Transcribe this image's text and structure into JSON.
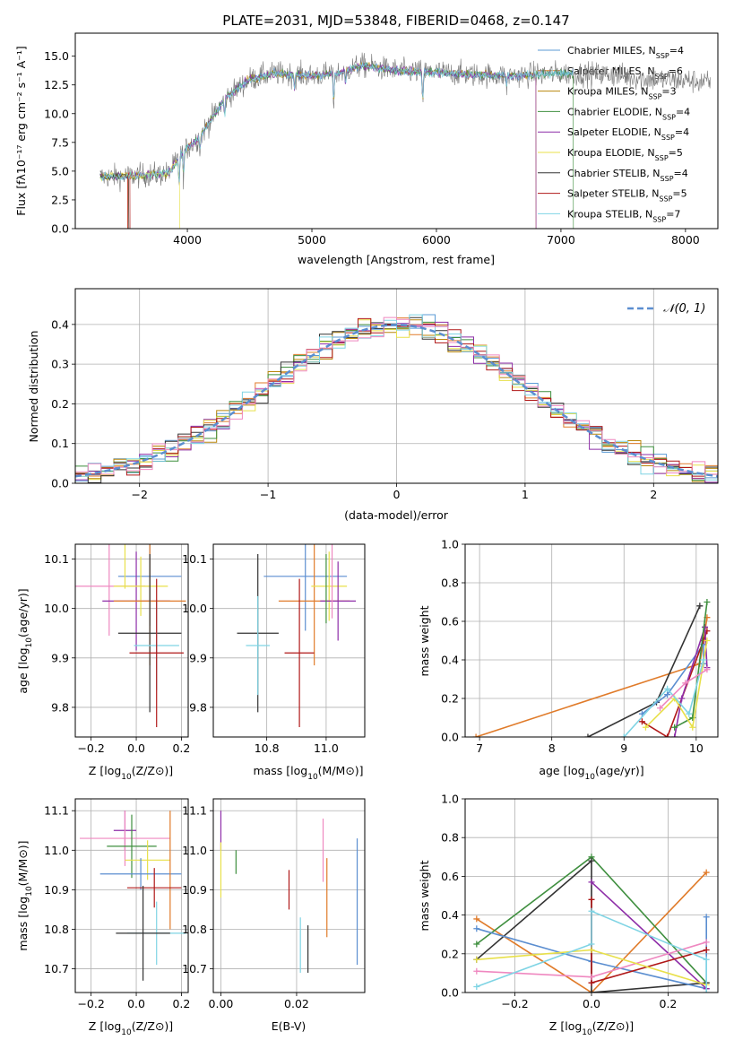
{
  "chart_data": [
    {
      "id": "spectrum",
      "type": "line",
      "title": "PLATE=2031, MJD=53848, FIBERID=0468, z=0.147",
      "xlabel": "wavelength [Angstrom, rest frame]",
      "ylabel": "Flux [fλ10⁻¹⁷ erg cm⁻² s⁻¹ A⁻¹]",
      "xlim": [
        3100,
        8260
      ],
      "ylim": [
        0,
        17
      ],
      "xticks": [
        4000,
        5000,
        6000,
        7000,
        8000
      ],
      "yticks": [
        0.0,
        2.5,
        5.0,
        7.5,
        10.0,
        12.5,
        15.0
      ],
      "continuum_anchors": [
        [
          3300,
          4.5
        ],
        [
          3600,
          4.6
        ],
        [
          3850,
          4.8
        ],
        [
          3950,
          6.5
        ],
        [
          4100,
          8.0
        ],
        [
          4300,
          11.3
        ],
        [
          4500,
          13.0
        ],
        [
          4700,
          13.5
        ],
        [
          5000,
          13.3
        ],
        [
          5200,
          13.5
        ],
        [
          5400,
          14.2
        ],
        [
          5700,
          13.7
        ],
        [
          6000,
          13.6
        ],
        [
          6300,
          13.4
        ],
        [
          6600,
          13.3
        ],
        [
          7000,
          13.5
        ],
        [
          7400,
          13.4
        ],
        [
          7700,
          13.0
        ],
        [
          8000,
          12.9
        ],
        [
          8200,
          12.7
        ]
      ],
      "observed_range": [
        3300,
        8200
      ],
      "model_range": [
        3300,
        7100
      ],
      "legend_placement": "top-right",
      "series": [
        {
          "name": "Chabrier MILES, N_SSP=4",
          "color": "#5b9bd5"
        },
        {
          "name": "Salpeter MILES, N_SSP=6",
          "color": "#e07b2a"
        },
        {
          "name": "Kroupa MILES, N_SSP=3",
          "color": "#b8860b"
        },
        {
          "name": "Chabrier ELODIE, N_SSP=4",
          "color": "#3f8f3f"
        },
        {
          "name": "Salpeter ELODIE, N_SSP=4",
          "color": "#8e2ea8"
        },
        {
          "name": "Kroupa ELODIE, N_SSP=5",
          "color": "#e8e04a"
        },
        {
          "name": "Chabrier STELIB, N_SSP=4",
          "color": "#333333"
        },
        {
          "name": "Salpeter STELIB, N_SSP=5",
          "color": "#b01818"
        },
        {
          "name": "Kroupa STELIB, N_SSP=7",
          "color": "#7fd4e4"
        }
      ]
    },
    {
      "id": "residuals",
      "type": "line",
      "xlabel": "(data-model)/error",
      "ylabel": "Normed distribution",
      "xlim": [
        -2.5,
        2.5
      ],
      "ylim": [
        0,
        0.49
      ],
      "xticks": [
        -2,
        -1,
        0,
        1,
        2
      ],
      "yticks": [
        0.0,
        0.1,
        0.2,
        0.3,
        0.4
      ],
      "grid": true,
      "legend_placement": "top-right",
      "legend": "𝒩(0, 1)",
      "curve_color": "#5b8ed0"
    },
    {
      "id": "age_vs_Z",
      "type": "scatter",
      "xlabel": "Z [log10(Z/Z⊙)]",
      "ylabel": "age  [log10(age/yr)]",
      "xlim": [
        -0.27,
        0.23
      ],
      "ylim": [
        9.74,
        10.13
      ],
      "xticks": [
        -0.2,
        0.0,
        0.2
      ],
      "yticks": [
        9.8,
        9.9,
        10.0,
        10.1
      ],
      "grid": true,
      "points": [
        {
          "x": -0.12,
          "y": 10.045,
          "xerr": 0.16,
          "yerr": 0.1,
          "color": "#ef88c0"
        },
        {
          "x": 0.06,
          "y": 10.065,
          "xerr": 0.14,
          "yerr": 0.1,
          "color": "#5b8ed0"
        },
        {
          "x": 0.0,
          "y": 10.015,
          "xerr": 0.15,
          "yerr": 0.1,
          "color": "#8e2ea8"
        },
        {
          "x": 0.02,
          "y": 10.045,
          "xerr": 0.12,
          "yerr": 0.06,
          "color": "#e8e04a"
        },
        {
          "x": 0.06,
          "y": 10.015,
          "xerr": 0.16,
          "yerr": 0.13,
          "color": "#e07b2a"
        },
        {
          "x": 0.06,
          "y": 9.95,
          "xerr": 0.14,
          "yerr": 0.16,
          "color": "#333333"
        },
        {
          "x": 0.09,
          "y": 9.925,
          "xerr": 0.1,
          "yerr": 0.09,
          "color": "#7fd4e4"
        },
        {
          "x": 0.09,
          "y": 9.91,
          "xerr": 0.12,
          "yerr": 0.15,
          "color": "#b01818"
        },
        {
          "x": -0.05,
          "y": 10.09,
          "xerr": 0.0,
          "yerr": 0.05,
          "color": "#e8e04a"
        }
      ]
    },
    {
      "id": "age_vs_mass",
      "type": "scatter",
      "xlabel": "mass [log10(M/M⊙)]",
      "xlim": [
        10.62,
        11.13
      ],
      "ylim": [
        9.74,
        10.13
      ],
      "xticks": [
        10.8,
        11.0
      ],
      "yticks": [
        9.8,
        9.9,
        10.0,
        10.1
      ],
      "grid": true,
      "points": [
        {
          "x": 10.93,
          "y": 10.065,
          "xerr": 0.14,
          "yerr": 0.11,
          "color": "#5b8ed0"
        },
        {
          "x": 10.96,
          "y": 10.015,
          "xerr": 0.12,
          "yerr": 0.13,
          "color": "#e07b2a"
        },
        {
          "x": 11.01,
          "y": 10.045,
          "xerr": 0.06,
          "yerr": 0.07,
          "color": "#e8e04a"
        },
        {
          "x": 11.04,
          "y": 10.015,
          "xerr": 0.06,
          "yerr": 0.08,
          "color": "#8e2ea8"
        },
        {
          "x": 11.02,
          "y": 10.06,
          "xerr": 0.0,
          "yerr": 0.08,
          "color": "#ef88c0"
        },
        {
          "x": 10.77,
          "y": 9.95,
          "xerr": 0.07,
          "yerr": 0.16,
          "color": "#333333"
        },
        {
          "x": 10.77,
          "y": 9.925,
          "xerr": 0.04,
          "yerr": 0.1,
          "color": "#7fd4e4"
        },
        {
          "x": 10.91,
          "y": 9.91,
          "xerr": 0.05,
          "yerr": 0.15,
          "color": "#b01818"
        },
        {
          "x": 11.0,
          "y": 10.04,
          "xerr": 0.0,
          "yerr": 0.07,
          "color": "#3f8f3f"
        }
      ]
    },
    {
      "id": "massweight_vs_age",
      "type": "line",
      "xlabel": "age  [log10(age/yr)]",
      "ylabel": "mass weight",
      "xlim": [
        6.8,
        10.3
      ],
      "ylim": [
        0,
        1.0
      ],
      "xticks": [
        7,
        8,
        9,
        10
      ],
      "yticks": [
        0.0,
        0.2,
        0.4,
        0.6,
        0.8,
        1.0
      ],
      "grid": true,
      "series": [
        {
          "color": "#e07b2a",
          "points": [
            [
              6.95,
              0.0
            ],
            [
              10.05,
              0.38
            ],
            [
              10.15,
              0.62
            ]
          ]
        },
        {
          "color": "#333333",
          "points": [
            [
              8.5,
              0.0
            ],
            [
              9.45,
              0.18
            ],
            [
              10.05,
              0.68
            ]
          ]
        },
        {
          "color": "#5b8ed0",
          "points": [
            [
              9.25,
              0.12
            ],
            [
              9.6,
              0.22
            ],
            [
              10.1,
              0.48
            ],
            [
              10.1,
              0.38
            ]
          ]
        },
        {
          "color": "#b01818",
          "points": [
            [
              9.25,
              0.08
            ],
            [
              9.6,
              0.0
            ],
            [
              10.1,
              0.5
            ],
            [
              10.15,
              0.55
            ]
          ]
        },
        {
          "color": "#8e2ea8",
          "points": [
            [
              9.7,
              0.0
            ],
            [
              9.8,
              0.2
            ],
            [
              10.12,
              0.57
            ],
            [
              10.15,
              0.36
            ]
          ]
        },
        {
          "color": "#3f8f3f",
          "points": [
            [
              9.7,
              0.05
            ],
            [
              9.95,
              0.1
            ],
            [
              10.15,
              0.7
            ]
          ]
        },
        {
          "color": "#e8e04a",
          "points": [
            [
              9.3,
              0.05
            ],
            [
              9.7,
              0.2
            ],
            [
              9.95,
              0.05
            ],
            [
              10.15,
              0.5
            ]
          ]
        },
        {
          "color": "#7fd4e4",
          "points": [
            [
              9.0,
              0.0
            ],
            [
              9.6,
              0.25
            ],
            [
              9.9,
              0.12
            ],
            [
              10.1,
              0.4
            ]
          ]
        },
        {
          "color": "#ef88c0",
          "points": [
            [
              9.5,
              0.15
            ],
            [
              9.85,
              0.28
            ],
            [
              10.15,
              0.35
            ]
          ]
        }
      ]
    },
    {
      "id": "mass_vs_Z",
      "type": "scatter",
      "xlabel": "Z [log10(Z/Z⊙)]",
      "ylabel": "mass [log10(M/M⊙)]",
      "xlim": [
        -0.27,
        0.23
      ],
      "ylim": [
        10.64,
        11.13
      ],
      "xticks": [
        -0.2,
        0.0,
        0.2
      ],
      "yticks": [
        10.7,
        10.8,
        10.9,
        11.0,
        11.1
      ],
      "grid": true,
      "points": [
        {
          "x": -0.05,
          "y": 11.05,
          "xerr": 0.05,
          "yerr": 0.05,
          "color": "#8e2ea8"
        },
        {
          "x": -0.05,
          "y": 11.03,
          "xerr": 0.2,
          "yerr": 0.07,
          "color": "#ef88c0"
        },
        {
          "x": -0.02,
          "y": 11.01,
          "xerr": 0.11,
          "yerr": 0.08,
          "color": "#3f8f3f"
        },
        {
          "x": 0.05,
          "y": 10.975,
          "xerr": 0.1,
          "yerr": 0.05,
          "color": "#e8e04a"
        },
        {
          "x": 0.02,
          "y": 10.94,
          "xerr": 0.18,
          "yerr": 0.04,
          "color": "#5b8ed0"
        },
        {
          "x": 0.15,
          "y": 10.95,
          "xerr": 0.0,
          "yerr": 0.15,
          "color": "#e07b2a"
        },
        {
          "x": 0.08,
          "y": 10.905,
          "xerr": 0.12,
          "yerr": 0.05,
          "color": "#b01818"
        },
        {
          "x": 0.09,
          "y": 10.79,
          "xerr": 0.13,
          "yerr": 0.08,
          "color": "#7fd4e4"
        },
        {
          "x": 0.03,
          "y": 10.79,
          "xerr": 0.12,
          "yerr": 0.12,
          "color": "#333333"
        }
      ]
    },
    {
      "id": "mass_vs_ebv",
      "type": "scatter",
      "xlabel": "E(B-V)",
      "xlim": [
        -0.002,
        0.038
      ],
      "ylim": [
        10.64,
        11.13
      ],
      "xticks": [
        0.0,
        0.02
      ],
      "yticks": [
        10.7,
        10.8,
        10.9,
        11.0,
        11.1
      ],
      "grid": true,
      "points": [
        {
          "x": 0.0,
          "y": 11.05,
          "yerr": 0.05,
          "color": "#8e2ea8"
        },
        {
          "x": 0.0,
          "y": 10.95,
          "yerr": 0.07,
          "color": "#e8e04a"
        },
        {
          "x": 0.004,
          "y": 10.97,
          "yerr": 0.03,
          "color": "#3f8f3f"
        },
        {
          "x": 0.018,
          "y": 10.9,
          "yerr": 0.05,
          "color": "#b01818"
        },
        {
          "x": 0.021,
          "y": 10.76,
          "yerr": 0.07,
          "color": "#7fd4e4"
        },
        {
          "x": 0.023,
          "y": 10.75,
          "yerr": 0.06,
          "color": "#333333"
        },
        {
          "x": 0.027,
          "y": 11.0,
          "yerr": 0.08,
          "color": "#ef88c0"
        },
        {
          "x": 0.028,
          "y": 10.88,
          "yerr": 0.1,
          "color": "#e07b2a"
        },
        {
          "x": 0.036,
          "y": 10.87,
          "yerr": 0.16,
          "color": "#5b8ed0"
        }
      ]
    },
    {
      "id": "massweight_vs_Z",
      "type": "line",
      "xlabel": "Z [log10(Z/Z⊙)]",
      "ylabel": "mass weight",
      "xlim": [
        -0.33,
        0.33
      ],
      "ylim": [
        0,
        1.0
      ],
      "xticks": [
        -0.2,
        0.0,
        0.2
      ],
      "yticks": [
        0.0,
        0.2,
        0.4,
        0.6,
        0.8,
        1.0
      ],
      "grid": true,
      "series": [
        {
          "color": "#e07b2a",
          "points": [
            [
              -0.3,
              0.38
            ],
            [
              0.0,
              0.0
            ],
            [
              0.3,
              0.62
            ]
          ]
        },
        {
          "color": "#3f8f3f",
          "points": [
            [
              -0.3,
              0.25
            ],
            [
              0.0,
              0.7
            ],
            [
              0.3,
              0.05
            ]
          ]
        },
        {
          "color": "#333333",
          "points": [
            [
              -0.3,
              0.17
            ],
            [
              0.0,
              0.68
            ],
            [
              0.0,
              0.0
            ],
            [
              0.3,
              0.05
            ]
          ]
        },
        {
          "color": "#5b8ed0",
          "points": [
            [
              -0.3,
              0.33
            ],
            [
              0.0,
              0.16
            ],
            [
              0.3,
              0.02
            ],
            [
              0.3,
              0.39
            ]
          ]
        },
        {
          "color": "#8e2ea8",
          "points": [
            [
              0.0,
              0.57
            ],
            [
              0.3,
              0.02
            ]
          ]
        },
        {
          "color": "#b01818",
          "points": [
            [
              0.0,
              0.48
            ],
            [
              0.0,
              0.05
            ],
            [
              0.3,
              0.22
            ]
          ]
        },
        {
          "color": "#ef88c0",
          "points": [
            [
              -0.3,
              0.11
            ],
            [
              0.0,
              0.08
            ],
            [
              0.3,
              0.26
            ]
          ]
        },
        {
          "color": "#e8e04a",
          "points": [
            [
              -0.3,
              0.17
            ],
            [
              0.0,
              0.22
            ],
            [
              0.3,
              0.04
            ]
          ]
        },
        {
          "color": "#7fd4e4",
          "points": [
            [
              -0.3,
              0.03
            ],
            [
              0.0,
              0.25
            ],
            [
              0.0,
              0.42
            ],
            [
              0.3,
              0.17
            ],
            [
              0.3,
              0.0
            ]
          ]
        }
      ]
    }
  ]
}
